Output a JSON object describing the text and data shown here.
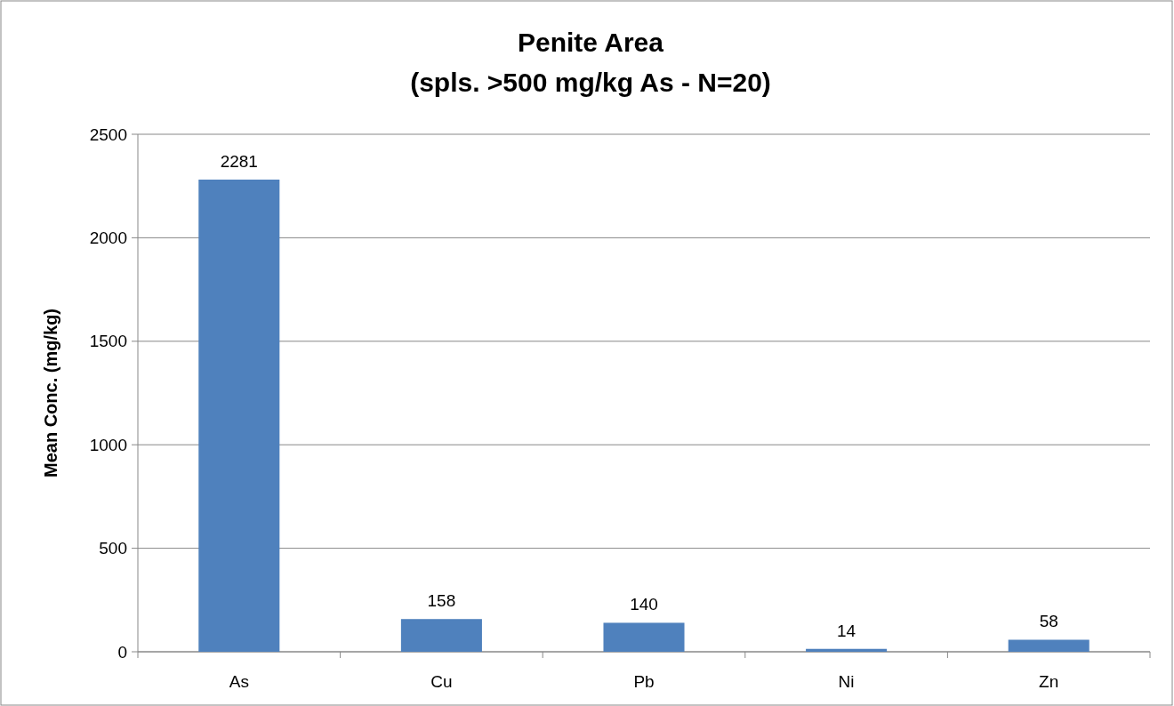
{
  "chart_data": {
    "type": "bar",
    "title": "Penite Area\n(spls. >500 mg/kg As - N=20)",
    "ylabel": "Mean Conc. (mg/kg)",
    "categories": [
      "As",
      "Cu",
      "Pb",
      "Ni",
      "Zn"
    ],
    "values": [
      2281,
      158,
      140,
      14,
      58
    ],
    "color": "#4f81bd",
    "ylim": [
      0,
      2500
    ],
    "yticks": [
      0,
      500,
      1000,
      1500,
      2000,
      2500
    ],
    "grid": "y",
    "data_labels": true
  }
}
